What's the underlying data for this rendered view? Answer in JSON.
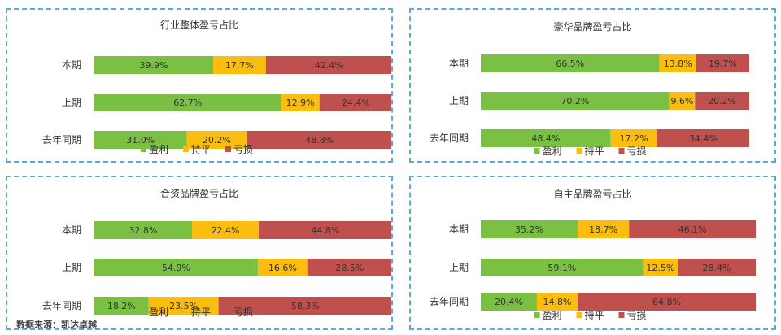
{
  "source_note": "数据来源：凯达卓越",
  "legend": [
    "盈利",
    "持平",
    "亏损"
  ],
  "colors": {
    "profit": "#7ac143",
    "flat": "#fbbd0f",
    "loss": "#c0504d",
    "border": "#5aa9d6"
  },
  "chart_data": [
    {
      "type": "bar",
      "stacked": "horizontal-100%",
      "title": "行业整体盈亏占比",
      "categories": [
        "本期",
        "上期",
        "去年同期"
      ],
      "series": [
        {
          "name": "盈利",
          "values": [
            39.9,
            62.7,
            31.0
          ],
          "labels": [
            "39.9%",
            "62.7%",
            "31.0%"
          ]
        },
        {
          "name": "持平",
          "values": [
            17.7,
            12.9,
            20.2
          ],
          "labels": [
            "17.7%",
            "12.9%",
            "20.2%"
          ]
        },
        {
          "name": "亏损",
          "values": [
            42.4,
            24.4,
            48.8
          ],
          "labels": [
            "42.4%",
            "24.4%",
            "48.8%"
          ]
        }
      ],
      "legend_position": "bottom"
    },
    {
      "type": "bar",
      "stacked": "horizontal-100%",
      "title": "豪华品牌盈亏占比",
      "categories": [
        "本期",
        "上期",
        "去年同期"
      ],
      "series": [
        {
          "name": "盈利",
          "values": [
            66.5,
            70.2,
            48.4
          ],
          "labels": [
            "66.5%",
            "70.2%",
            "48.4%"
          ]
        },
        {
          "name": "持平",
          "values": [
            13.8,
            9.6,
            17.2
          ],
          "labels": [
            "13.8%",
            "9.6%",
            "17.2%"
          ]
        },
        {
          "name": "亏损",
          "values": [
            19.7,
            20.2,
            34.4
          ],
          "labels": [
            "19.7%",
            "20.2%",
            "34.4%"
          ]
        }
      ],
      "legend_position": "bottom"
    },
    {
      "type": "bar",
      "stacked": "horizontal-100%",
      "title": "合资品牌盈亏占比",
      "categories": [
        "本期",
        "上期",
        "去年同期"
      ],
      "series": [
        {
          "name": "盈利",
          "values": [
            32.8,
            54.9,
            18.2
          ],
          "labels": [
            "32.8%",
            "54.9%",
            "18.2%"
          ]
        },
        {
          "name": "持平",
          "values": [
            22.4,
            16.6,
            23.5
          ],
          "labels": [
            "22.4%",
            "16.6%",
            "23.5%"
          ]
        },
        {
          "name": "亏损",
          "values": [
            44.8,
            28.5,
            58.3
          ],
          "labels": [
            "44.8%",
            "28.5%",
            "58.3%"
          ]
        }
      ],
      "legend_position": "bottom"
    },
    {
      "type": "bar",
      "stacked": "horizontal-100%",
      "title": "自主品牌盈亏占比",
      "categories": [
        "本期",
        "上期",
        "去年同期"
      ],
      "series": [
        {
          "name": "盈利",
          "values": [
            35.2,
            59.1,
            20.4
          ],
          "labels": [
            "35.2%",
            "59.1%",
            "20.4%"
          ]
        },
        {
          "name": "持平",
          "values": [
            18.7,
            12.5,
            14.8
          ],
          "labels": [
            "18.7%",
            "12.5%",
            "14.8%"
          ]
        },
        {
          "name": "亏损",
          "values": [
            46.1,
            28.4,
            64.8
          ],
          "labels": [
            "46.1%",
            "28.4%",
            "64.8%"
          ]
        }
      ],
      "legend_position": "bottom"
    }
  ]
}
